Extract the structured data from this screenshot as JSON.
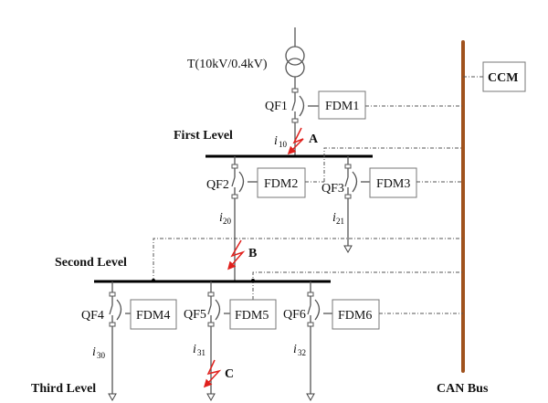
{
  "transformer": {
    "label": "T(10kV/0.4kV)"
  },
  "levels": {
    "first": "First Level",
    "second": "Second Level",
    "third": "Third Level"
  },
  "breakers": [
    "QF1",
    "QF2",
    "QF3",
    "QF4",
    "QF5",
    "QF6"
  ],
  "fdm": [
    "FDM1",
    "FDM2",
    "FDM3",
    "FDM4",
    "FDM5",
    "FDM6"
  ],
  "ccm": "CCM",
  "can_bus": {
    "label": "CAN Bus",
    "color": "#a0521d"
  },
  "currents": [
    {
      "i": "i",
      "sub": "10"
    },
    {
      "i": "i",
      "sub": "20"
    },
    {
      "i": "i",
      "sub": "21"
    },
    {
      "i": "i",
      "sub": "30"
    },
    {
      "i": "i",
      "sub": "31"
    },
    {
      "i": "i",
      "sub": "32"
    }
  ],
  "faults": [
    "A",
    "B",
    "C"
  ],
  "fault_color": "#e0201c"
}
